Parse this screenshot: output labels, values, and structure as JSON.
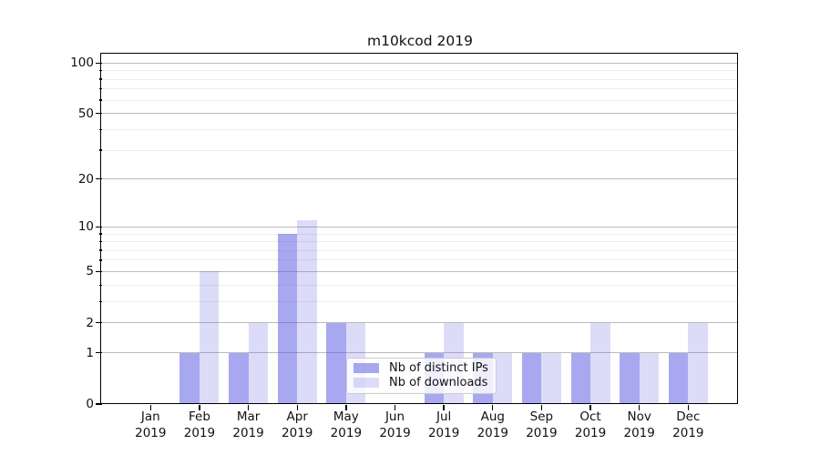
{
  "title": "m10kcod 2019",
  "chart_data": {
    "type": "bar",
    "title": "m10kcod 2019",
    "categories": [
      {
        "month": "Jan",
        "year": "2019"
      },
      {
        "month": "Feb",
        "year": "2019"
      },
      {
        "month": "Mar",
        "year": "2019"
      },
      {
        "month": "Apr",
        "year": "2019"
      },
      {
        "month": "May",
        "year": "2019"
      },
      {
        "month": "Jun",
        "year": "2019"
      },
      {
        "month": "Jul",
        "year": "2019"
      },
      {
        "month": "Aug",
        "year": "2019"
      },
      {
        "month": "Sep",
        "year": "2019"
      },
      {
        "month": "Oct",
        "year": "2019"
      },
      {
        "month": "Nov",
        "year": "2019"
      },
      {
        "month": "Dec",
        "year": "2019"
      }
    ],
    "series": [
      {
        "name": "Nb of distinct IPs",
        "values": [
          0,
          1,
          1,
          9,
          2,
          0,
          1,
          1,
          1,
          1,
          1,
          1
        ],
        "color": "rgba(81,81,225,0.5)"
      },
      {
        "name": "Nb of downloads",
        "values": [
          0,
          5,
          2,
          11,
          2,
          0,
          2,
          1,
          1,
          2,
          1,
          2
        ],
        "color": "rgba(81,81,225,0.2)"
      }
    ],
    "y_axis": {
      "scale": "log10(1+x)",
      "ticks": [
        0,
        1,
        2,
        5,
        10,
        20,
        50,
        100
      ],
      "minor_ticks": [
        3,
        4,
        6,
        7,
        8,
        9,
        30,
        40,
        60,
        70,
        80,
        90
      ],
      "top_value": 112
    },
    "x_axis": {
      "tick_style": "month over year, centered"
    },
    "legend": {
      "position": "lower-center"
    },
    "grid": true
  },
  "colors": {
    "bar_base": "#5151e1",
    "major_grid": "#bcbcbc",
    "minor_grid": "#ececec",
    "spine": "#000000",
    "legend_border": "#cccccc",
    "text": "#111111"
  }
}
